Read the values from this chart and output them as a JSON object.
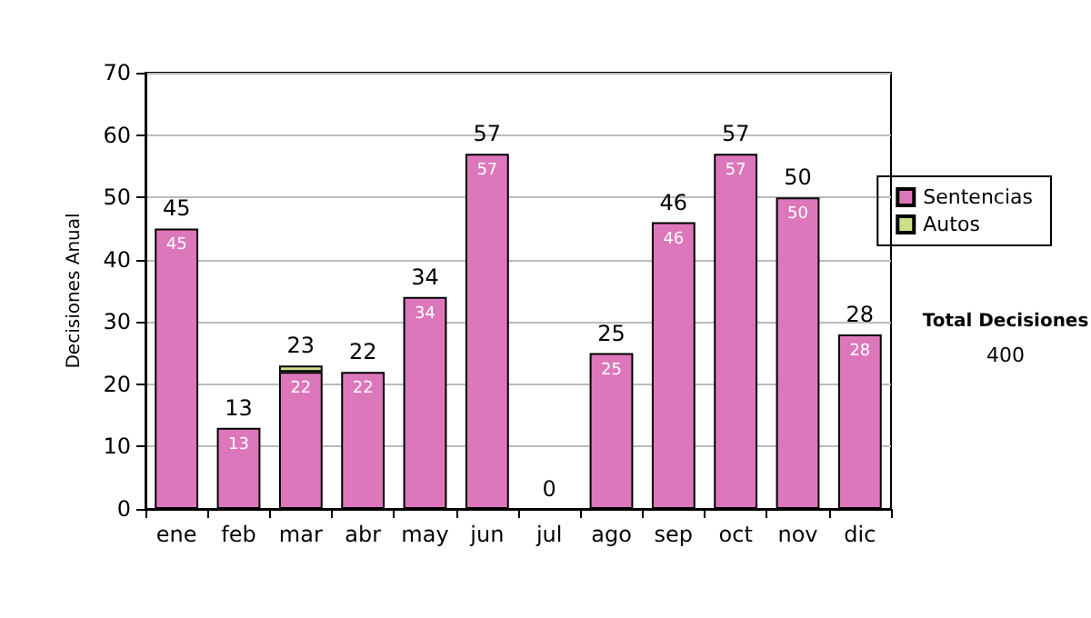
{
  "chart_data": {
    "type": "bar",
    "ylabel": "Decisiones Anual",
    "categories": [
      "ene",
      "feb",
      "mar",
      "abr",
      "may",
      "jun",
      "jul",
      "ago",
      "sep",
      "oct",
      "nov",
      "dic"
    ],
    "stacked": true,
    "series": [
      {
        "name": "Sentencias",
        "color": "#dd77bb",
        "values": [
          45,
          13,
          22,
          22,
          34,
          57,
          0,
          25,
          46,
          57,
          50,
          28
        ],
        "value_labels": [
          "45",
          "13",
          "22",
          "22",
          "34",
          "57",
          null,
          "25",
          "46",
          "57",
          "50",
          "28"
        ]
      },
      {
        "name": "Autos",
        "color": "#cce08a",
        "values": [
          0,
          0,
          1,
          0,
          0,
          0,
          0,
          0,
          0,
          0,
          0,
          0
        ]
      }
    ],
    "totals": [
      "45",
      "13",
      "23",
      "22",
      "34",
      "57",
      "0",
      "25",
      "46",
      "57",
      "50",
      "28"
    ],
    "ylim": [
      0,
      70
    ],
    "yticks": [
      0,
      10,
      20,
      30,
      40,
      50,
      60,
      70
    ],
    "grid": "y",
    "legend": "right",
    "annotations": [
      "Total Decisiones",
      "400"
    ]
  }
}
